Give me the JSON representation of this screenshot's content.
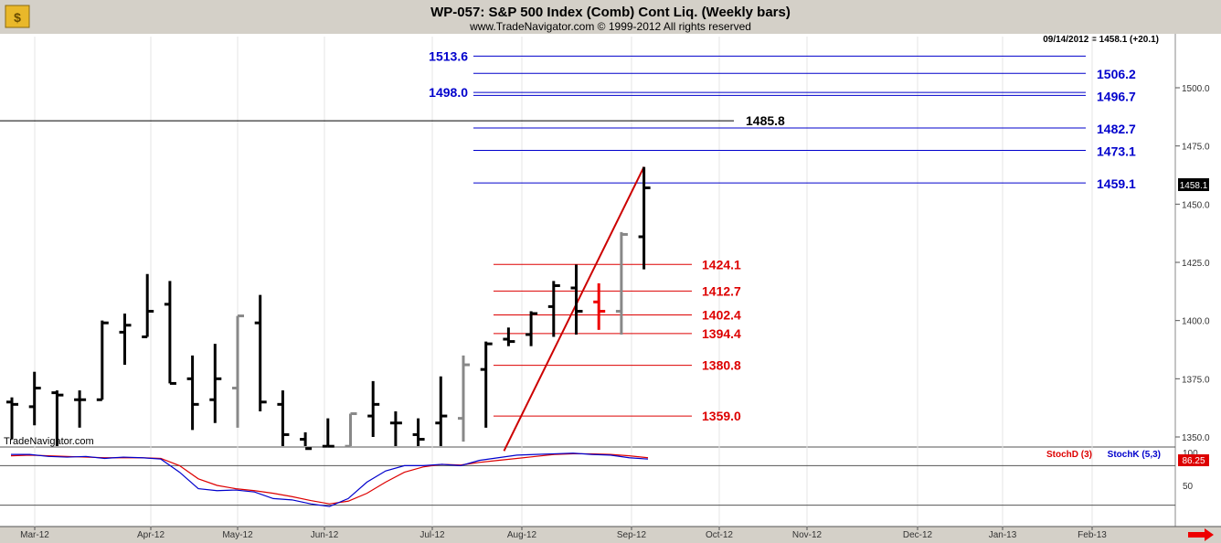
{
  "header": {
    "title": "WP-057:  S&P 500 Index (Comb) Cont Liq.  (Weekly bars)",
    "copyright": "www.TradeNavigator.com © 1999-2012 All rights reserved",
    "last_quote": "09/14/2012 = 1458.1 (+20.1)",
    "watermark": "TradeNavigator.com",
    "current_price_tag": "1458.1"
  },
  "colors": {
    "blue_levels": "#0000cc",
    "red_levels": "#dd0000",
    "trendline": "#cc0000",
    "bar_black": "#000000",
    "bar_gray": "#888888",
    "bar_red": "#ee0000",
    "stoch_d": "#dd0000",
    "stoch_k": "#0000cc"
  },
  "chart_data": {
    "type": "bar",
    "price_axis": {
      "min": 1340,
      "max": 1520,
      "ticks": [
        "1350.0",
        "1375.0",
        "1400.0",
        "1425.0",
        "1450.0",
        "1475.0",
        "1500.0"
      ]
    },
    "x_labels": [
      "Mar-12",
      "Apr-12",
      "May-12",
      "Jun-12",
      "Jul-12",
      "Aug-12",
      "Sep-12",
      "Oct-12",
      "Nov-12",
      "Dec-12",
      "Jan-13",
      "Feb-13"
    ],
    "weekly_bars": [
      {
        "h": 1367,
        "l": 1349,
        "o": 1365,
        "c": 1364,
        "color": "black"
      },
      {
        "h": 1378,
        "l": 1355,
        "o": 1363,
        "c": 1371,
        "color": "black"
      },
      {
        "h": 1370,
        "l": 1343,
        "o": 1369,
        "c": 1368,
        "color": "black"
      },
      {
        "h": 1370,
        "l": 1354,
        "o": 1366,
        "c": 1366,
        "color": "black"
      },
      {
        "h": 1400,
        "l": 1366,
        "o": 1366,
        "c": 1399,
        "color": "black"
      },
      {
        "h": 1403,
        "l": 1381,
        "o": 1395,
        "c": 1398,
        "color": "black"
      },
      {
        "h": 1420,
        "l": 1393,
        "o": 1393,
        "c": 1404,
        "color": "black"
      },
      {
        "h": 1417,
        "l": 1373,
        "o": 1407,
        "c": 1373,
        "color": "black"
      },
      {
        "h": 1385,
        "l": 1353,
        "o": 1375,
        "c": 1364,
        "color": "black"
      },
      {
        "h": 1390,
        "l": 1356,
        "o": 1366,
        "c": 1375,
        "color": "black"
      },
      {
        "h": 1402,
        "l": 1354,
        "o": 1371,
        "c": 1402,
        "color": "gray"
      },
      {
        "h": 1411,
        "l": 1361,
        "o": 1399,
        "c": 1365,
        "color": "black"
      },
      {
        "h": 1370,
        "l": 1341,
        "o": 1364,
        "c": 1351,
        "color": "black"
      },
      {
        "h": 1352,
        "l": 1343,
        "o": 1349,
        "c": 1345,
        "color": "black"
      },
      {
        "h": 1358,
        "l": 1344,
        "o": 1346,
        "c": 1346,
        "color": "black"
      },
      {
        "h": 1360,
        "l": 1345,
        "o": 1346,
        "c": 1360,
        "color": "gray"
      },
      {
        "h": 1374,
        "l": 1350,
        "o": 1359,
        "c": 1364,
        "color": "black"
      },
      {
        "h": 1361,
        "l": 1344,
        "o": 1356,
        "c": 1356,
        "color": "black"
      },
      {
        "h": 1358,
        "l": 1343,
        "o": 1351,
        "c": 1349,
        "color": "black"
      },
      {
        "h": 1376,
        "l": 1345,
        "o": 1356,
        "c": 1359,
        "color": "black"
      },
      {
        "h": 1385,
        "l": 1348,
        "o": 1358,
        "c": 1381,
        "color": "gray"
      },
      {
        "h": 1391,
        "l": 1354,
        "o": 1379,
        "c": 1390,
        "color": "black"
      },
      {
        "h": 1397,
        "l": 1389,
        "o": 1392,
        "c": 1391,
        "color": "black"
      },
      {
        "h": 1404,
        "l": 1389,
        "o": 1394,
        "c": 1403,
        "color": "black"
      },
      {
        "h": 1417,
        "l": 1393,
        "o": 1406,
        "c": 1415,
        "color": "black"
      },
      {
        "h": 1424,
        "l": 1394,
        "o": 1414,
        "c": 1404,
        "color": "black"
      },
      {
        "h": 1416,
        "l": 1396,
        "o": 1408,
        "c": 1404,
        "color": "red"
      },
      {
        "h": 1438,
        "l": 1394,
        "o": 1404,
        "c": 1437,
        "color": "gray"
      },
      {
        "h": 1466,
        "l": 1422,
        "o": 1436,
        "c": 1457,
        "color": "black"
      }
    ],
    "blue_levels": [
      {
        "value": 1513.6,
        "label": "1513.6",
        "side": "left"
      },
      {
        "value": 1506.2,
        "label": "1506.2",
        "side": "right"
      },
      {
        "value": 1498.0,
        "label": "1498.0",
        "side": "left"
      },
      {
        "value": 1496.7,
        "label": "1496.7",
        "side": "right"
      },
      {
        "value": 1482.7,
        "label": "1482.7",
        "side": "right"
      },
      {
        "value": 1473.1,
        "label": "1473.1",
        "side": "right"
      },
      {
        "value": 1459.1,
        "label": "1459.1",
        "side": "right"
      }
    ],
    "black_level": {
      "value": 1485.8,
      "label": "1485.8"
    },
    "red_levels": [
      {
        "value": 1424.1,
        "label": "1424.1"
      },
      {
        "value": 1412.7,
        "label": "1412.7"
      },
      {
        "value": 1402.4,
        "label": "1402.4"
      },
      {
        "value": 1394.4,
        "label": "1394.4"
      },
      {
        "value": 1380.8,
        "label": "1380.8"
      },
      {
        "value": 1359.0,
        "label": "1359.0"
      }
    ],
    "trendline": {
      "from_week": 21.8,
      "from": 1344,
      "to_week": 28,
      "to": 1466
    },
    "stochastic": {
      "legend_d": "StochD (3)",
      "legend_k": "StochK (5,3)",
      "value_tag": "86.25",
      "axis": [
        "100",
        "50"
      ],
      "stoch_k": [
        97,
        97,
        94,
        93,
        94,
        91,
        93,
        92,
        90,
        70,
        45,
        42,
        43,
        40,
        30,
        28,
        22,
        18,
        30,
        55,
        72,
        80,
        80,
        82,
        80,
        88,
        92,
        96,
        97,
        98,
        99,
        97,
        96,
        92,
        90
      ],
      "stoch_d": [
        95,
        96,
        95,
        94,
        93,
        92,
        92,
        92,
        91,
        80,
        60,
        50,
        45,
        42,
        38,
        33,
        27,
        22,
        26,
        38,
        55,
        70,
        78,
        82,
        81,
        85,
        88,
        91,
        94,
        97,
        98,
        98,
        97,
        95,
        92
      ]
    }
  }
}
